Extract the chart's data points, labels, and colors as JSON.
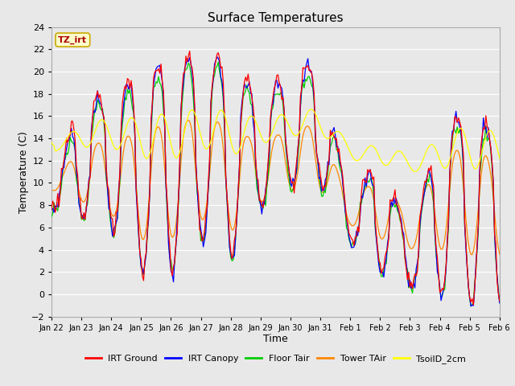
{
  "title": "Surface Temperatures",
  "xlabel": "Time",
  "ylabel": "Temperature (C)",
  "ylim": [
    -2,
    24
  ],
  "yticks": [
    -2,
    0,
    2,
    4,
    6,
    8,
    10,
    12,
    14,
    16,
    18,
    20,
    22,
    24
  ],
  "annotation_text": "TZ_irt",
  "annotation_bg": "#ffffcc",
  "annotation_border": "#ccaa00",
  "annotation_text_color": "#aa0000",
  "bg_color": "#e8e8e8",
  "plot_bg_color": "#e8e8e8",
  "line_colors": {
    "IRT Ground": "#ff0000",
    "IRT Canopy": "#0000ff",
    "Floor Tair": "#00cc00",
    "Tower TAir": "#ff8800",
    "TsoilD_2cm": "#ffff00"
  },
  "legend_entries": [
    "IRT Ground",
    "IRT Canopy",
    "Floor Tair",
    "Tower TAir",
    "TsoilD_2cm"
  ]
}
